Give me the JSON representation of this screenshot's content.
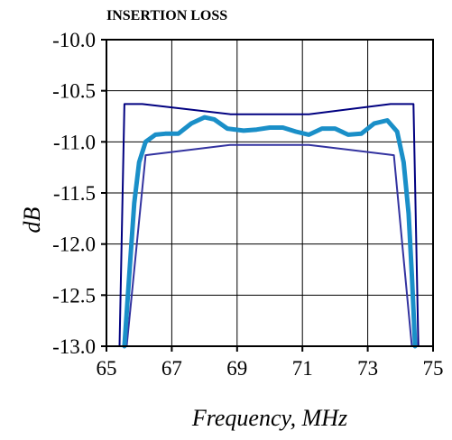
{
  "chart_data": {
    "type": "line",
    "title": "INSERTION LOSS",
    "xlabel": "Frequency, MHz",
    "ylabel": "dB",
    "xlim": [
      65,
      75
    ],
    "ylim": [
      -13.0,
      -10.0
    ],
    "x_ticks": [
      65,
      67,
      69,
      71,
      73,
      75
    ],
    "x_tick_labels": [
      "65",
      "67",
      "69",
      "71",
      "73",
      "75"
    ],
    "y_ticks": [
      -10.0,
      -10.5,
      -11.0,
      -11.5,
      -12.0,
      -12.5,
      -13.0
    ],
    "y_tick_labels": [
      "-10.0",
      "-10.5",
      "-11.0",
      "-11.5",
      "-12.0",
      "-12.5",
      "-13.0"
    ],
    "grid": true,
    "legend": "none",
    "series": [
      {
        "color": "#000080",
        "width": 2,
        "points": [
          [
            65.4,
            -13.0
          ],
          [
            65.55,
            -10.63
          ],
          [
            66.1,
            -10.63
          ],
          [
            68.8,
            -10.73
          ],
          [
            71.2,
            -10.73
          ],
          [
            73.7,
            -10.63
          ],
          [
            74.4,
            -10.63
          ],
          [
            74.55,
            -13.0
          ]
        ]
      },
      {
        "color": "#3333a0",
        "width": 2,
        "points": [
          [
            65.62,
            -13.0
          ],
          [
            66.2,
            -11.13
          ],
          [
            68.8,
            -11.03
          ],
          [
            71.2,
            -11.03
          ],
          [
            73.8,
            -11.13
          ],
          [
            74.35,
            -13.0
          ]
        ]
      },
      {
        "color": "#1a8fc8",
        "width": 5,
        "points": [
          [
            65.55,
            -13.0
          ],
          [
            65.7,
            -12.3
          ],
          [
            65.85,
            -11.6
          ],
          [
            66.0,
            -11.2
          ],
          [
            66.2,
            -11.0
          ],
          [
            66.5,
            -10.93
          ],
          [
            66.8,
            -10.92
          ],
          [
            67.2,
            -10.92
          ],
          [
            67.6,
            -10.82
          ],
          [
            68.0,
            -10.76
          ],
          [
            68.3,
            -10.78
          ],
          [
            68.7,
            -10.87
          ],
          [
            69.2,
            -10.89
          ],
          [
            69.6,
            -10.88
          ],
          [
            70.0,
            -10.86
          ],
          [
            70.4,
            -10.86
          ],
          [
            70.8,
            -10.9
          ],
          [
            71.2,
            -10.93
          ],
          [
            71.6,
            -10.87
          ],
          [
            72.0,
            -10.87
          ],
          [
            72.4,
            -10.93
          ],
          [
            72.8,
            -10.92
          ],
          [
            73.2,
            -10.82
          ],
          [
            73.6,
            -10.79
          ],
          [
            73.9,
            -10.9
          ],
          [
            74.1,
            -11.2
          ],
          [
            74.25,
            -11.7
          ],
          [
            74.35,
            -12.3
          ],
          [
            74.45,
            -13.0
          ]
        ]
      }
    ]
  }
}
